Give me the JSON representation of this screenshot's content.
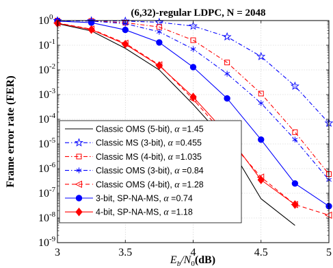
{
  "chart_data": {
    "type": "line",
    "title": "(6,32)-regular LDPC, N = 2048",
    "xlabel_prefix": "E",
    "xlabel_sub1": "b",
    "xlabel_mid": "/N",
    "xlabel_sub2": "0",
    "xlabel_suffix": "(dB)",
    "ylabel": "Frame error rate (FER)",
    "x_scale": "linear",
    "y_scale": "log",
    "xlim": [
      3,
      5
    ],
    "ylim": [
      1e-09,
      1
    ],
    "xticks": [
      {
        "value": 3,
        "label": "3"
      },
      {
        "value": 3.5,
        "label": "3.5"
      },
      {
        "value": 4,
        "label": "4"
      },
      {
        "value": 4.5,
        "label": "4.5"
      },
      {
        "value": 5,
        "label": "5"
      }
    ],
    "yticks": [
      {
        "exp": 0,
        "base": "10",
        "sup": "0"
      },
      {
        "exp": -1,
        "base": "10",
        "sup": "-1"
      },
      {
        "exp": -2,
        "base": "10",
        "sup": "-2"
      },
      {
        "exp": -3,
        "base": "10",
        "sup": "-3"
      },
      {
        "exp": -4,
        "base": "10",
        "sup": "-4"
      },
      {
        "exp": -5,
        "base": "10",
        "sup": "-5"
      },
      {
        "exp": -6,
        "base": "10",
        "sup": "-6"
      },
      {
        "exp": -7,
        "base": "10",
        "sup": "-7"
      },
      {
        "exp": -8,
        "base": "10",
        "sup": "-8"
      },
      {
        "exp": -9,
        "base": "10",
        "sup": "-9"
      }
    ],
    "grid": true,
    "legend_position": "bottom-left",
    "series": [
      {
        "name": "Classic OMS (5-bit), ",
        "alpha": "1.45",
        "color": "#000000",
        "dash": "solid",
        "marker": "none",
        "x": [
          3,
          3.25,
          3.5,
          3.75,
          4,
          4.25,
          4.5,
          4.75
        ],
        "y": [
          0.75,
          0.38,
          0.075,
          0.01,
          0.0004,
          1.2e-05,
          6e-08,
          5e-09
        ]
      },
      {
        "name": "Classic MS (3-bit), ",
        "alpha": "0.455",
        "color": "#0000ff",
        "dash": "dashdot",
        "marker": "star",
        "x": [
          3,
          3.25,
          3.5,
          3.75,
          4,
          4.25,
          4.5,
          4.75,
          5
        ],
        "y": [
          0.99,
          0.98,
          0.95,
          0.85,
          0.6,
          0.22,
          0.035,
          0.0022,
          7e-05
        ]
      },
      {
        "name": "Classic MS (4-bit), ",
        "alpha": "1.035",
        "color": "#ff0000",
        "dash": "dashdot",
        "marker": "square",
        "x": [
          3,
          3.25,
          3.5,
          3.75,
          4,
          4.25,
          4.5,
          4.75,
          5
        ],
        "y": [
          0.99,
          0.96,
          0.82,
          0.55,
          0.16,
          0.02,
          0.0011,
          3e-05,
          6e-07
        ]
      },
      {
        "name": "Classic OMS (3-bit), ",
        "alpha": "0.84",
        "color": "#0000ff",
        "dash": "dashdot",
        "marker": "asterisk",
        "x": [
          3,
          3.25,
          3.5,
          3.75,
          4,
          4.25,
          4.5,
          4.75,
          5
        ],
        "y": [
          0.99,
          0.95,
          0.75,
          0.35,
          0.07,
          0.007,
          0.00045,
          1.5e-05,
          3.5e-07
        ]
      },
      {
        "name": "Classic OMS (4-bit), ",
        "alpha": "1.28",
        "color": "#ff0000",
        "dash": "dashed",
        "marker": "triangle-left",
        "x": [
          3,
          3.25,
          3.5,
          3.75,
          4,
          4.25,
          4.5,
          4.75,
          5
        ],
        "y": [
          0.8,
          0.45,
          0.12,
          0.016,
          0.00065,
          1.8e-05,
          4.5e-07,
          3.5e-08,
          1.3e-08
        ]
      },
      {
        "name": "3-bit, SP-NA-MS, ",
        "alpha": "0.74",
        "color": "#0000ff",
        "dash": "solid",
        "marker": "circle",
        "x": [
          3,
          3.25,
          3.5,
          3.75,
          4,
          4.25,
          4.5,
          4.75,
          5
        ],
        "y": [
          0.95,
          0.82,
          0.42,
          0.13,
          0.013,
          0.0007,
          1.5e-05,
          2.5e-07,
          3e-08
        ]
      },
      {
        "name": "4-bit, SP-NA-MS, ",
        "alpha": "1.18",
        "color": "#ff0000",
        "dash": "solid",
        "marker": "diamond",
        "x": [
          3,
          3.25,
          3.5,
          3.75,
          4,
          4.25,
          4.5,
          4.75
        ],
        "y": [
          0.78,
          0.43,
          0.11,
          0.015,
          0.0008,
          2.5e-05,
          3.5e-07,
          3.5e-08
        ]
      }
    ],
    "legend_alpha_symbol": "α",
    "legend_alpha_eq": " ="
  }
}
